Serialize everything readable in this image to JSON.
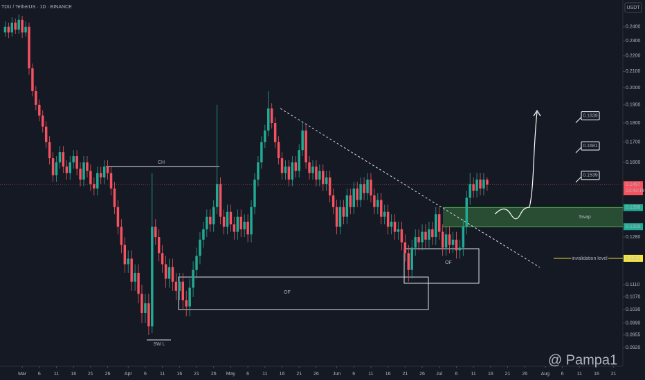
{
  "chart_data": {
    "type": "candlestick",
    "title": "TDU / TetherUS · 1D · BINANCE",
    "currency": "USDT",
    "countdown": "13:43:19",
    "watermark": "@ Pampa1",
    "up_color": "#22ab94",
    "down_color": "#f7525f",
    "log_scale": true,
    "grid": false,
    "xlim": [
      -1.5,
      180.7
    ],
    "ylim": [
      0.087,
      0.26
    ],
    "xticks": [
      {
        "value": 5,
        "label": "Mar"
      },
      {
        "value": 10,
        "label": "6"
      },
      {
        "value": 15,
        "label": "11"
      },
      {
        "value": 20,
        "label": "16"
      },
      {
        "value": 25,
        "label": "21"
      },
      {
        "value": 30,
        "label": "26"
      },
      {
        "value": 36,
        "label": "Apr"
      },
      {
        "value": 41,
        "label": "6"
      },
      {
        "value": 46,
        "label": "11"
      },
      {
        "value": 51,
        "label": "16"
      },
      {
        "value": 56,
        "label": "21"
      },
      {
        "value": 61,
        "label": "26"
      },
      {
        "value": 66,
        "label": "May"
      },
      {
        "value": 71,
        "label": "6"
      },
      {
        "value": 76,
        "label": "11"
      },
      {
        "value": 81,
        "label": "16"
      },
      {
        "value": 86,
        "label": "21"
      },
      {
        "value": 91,
        "label": "26"
      },
      {
        "value": 97,
        "label": "Jun"
      },
      {
        "value": 102,
        "label": "6"
      },
      {
        "value": 107,
        "label": "11"
      },
      {
        "value": 112,
        "label": "16"
      },
      {
        "value": 117,
        "label": "21"
      },
      {
        "value": 122,
        "label": "26"
      },
      {
        "value": 127,
        "label": "Jul"
      },
      {
        "value": 132,
        "label": "6"
      },
      {
        "value": 137,
        "label": "11"
      },
      {
        "value": 142,
        "label": "16"
      },
      {
        "value": 147,
        "label": "21"
      },
      {
        "value": 152,
        "label": "26"
      },
      {
        "value": 158,
        "label": "Aug"
      },
      {
        "value": 163,
        "label": "6"
      },
      {
        "value": 168,
        "label": "11"
      },
      {
        "value": 173,
        "label": "16"
      },
      {
        "value": 178,
        "label": "21"
      }
    ],
    "yticks": [
      {
        "value": 0.24,
        "label": "0.2400"
      },
      {
        "value": 0.23,
        "label": "0.2300"
      },
      {
        "value": 0.22,
        "label": "0.2200"
      },
      {
        "value": 0.21,
        "label": "0.2100"
      },
      {
        "value": 0.2,
        "label": "0.2000"
      },
      {
        "value": 0.19,
        "label": "0.1900"
      },
      {
        "value": 0.18,
        "label": "0.1800"
      },
      {
        "value": 0.17,
        "label": "0.1700"
      },
      {
        "value": 0.16,
        "label": "0.1600"
      },
      {
        "value": 0.128,
        "label": "0.1280"
      },
      {
        "value": 0.111,
        "label": "0.1110"
      },
      {
        "value": 0.107,
        "label": "0.1070"
      },
      {
        "value": 0.103,
        "label": "0.1030"
      },
      {
        "value": 0.099,
        "label": "0.0990"
      },
      {
        "value": 0.0955,
        "label": "0.0955"
      },
      {
        "value": 0.092,
        "label": "0.0920"
      }
    ],
    "price_labels": [
      {
        "value": 0.1497,
        "label": "0.1497",
        "color": "#f7525f"
      },
      {
        "value": 0.1398,
        "label": "0.1398",
        "color": "#22ab94"
      },
      {
        "value": 0.132,
        "label": "0.1320",
        "color": "#22ab94"
      },
      {
        "value": 0.1201,
        "label": "0.1201",
        "color": "#f5e642"
      }
    ],
    "targets": [
      {
        "value": 0.1839,
        "label": "0.1839"
      },
      {
        "value": 0.1681,
        "label": "0.1681"
      },
      {
        "value": 0.1539,
        "label": "0.1539"
      }
    ],
    "annotations": {
      "ch": "CH",
      "swl": "SW L",
      "of_low": "OF",
      "of_high": "OF",
      "swap": "Swap",
      "invalidation": "invalidation level"
    },
    "open": [
      0.236,
      0.24,
      0.236,
      0.243,
      0.238,
      0.245,
      0.236,
      0.24,
      0.212,
      0.198,
      0.19,
      0.184,
      0.178,
      0.17,
      0.162,
      0.154,
      0.16,
      0.165,
      0.158,
      0.155,
      0.16,
      0.163,
      0.157,
      0.152,
      0.16,
      0.156,
      0.15,
      0.148,
      0.155,
      0.153,
      0.158,
      0.155,
      0.148,
      0.14,
      0.132,
      0.125,
      0.118,
      0.12,
      0.112,
      0.115,
      0.108,
      0.102,
      0.105,
      0.098,
      0.132,
      0.128,
      0.122,
      0.118,
      0.113,
      0.117,
      0.112,
      0.109,
      0.112,
      0.106,
      0.104,
      0.11,
      0.116,
      0.121,
      0.127,
      0.131,
      0.136,
      0.133,
      0.14,
      0.15,
      0.136,
      0.132,
      0.138,
      0.133,
      0.13,
      0.136,
      0.131,
      0.134,
      0.129,
      0.14,
      0.152,
      0.16,
      0.17,
      0.176,
      0.188,
      0.18,
      0.17,
      0.162,
      0.155,
      0.158,
      0.152,
      0.16,
      0.156,
      0.166,
      0.176,
      0.16,
      0.155,
      0.158,
      0.152,
      0.156,
      0.15,
      0.153,
      0.145,
      0.14,
      0.132,
      0.14,
      0.136,
      0.145,
      0.14,
      0.148,
      0.143,
      0.15,
      0.146,
      0.152,
      0.145,
      0.14,
      0.143,
      0.136,
      0.138,
      0.132,
      0.134,
      0.13,
      0.131,
      0.126,
      0.122,
      0.116,
      0.124,
      0.128,
      0.126,
      0.13,
      0.127,
      0.131,
      0.128,
      0.137,
      0.13,
      0.124,
      0.129,
      0.125,
      0.127,
      0.123,
      0.124,
      0.132,
      0.144,
      0.15,
      0.147,
      0.152,
      0.148,
      0.152
    ],
    "high": [
      0.244,
      0.243,
      0.247,
      0.246,
      0.249,
      0.248,
      0.244,
      0.243,
      0.215,
      0.201,
      0.193,
      0.187,
      0.181,
      0.173,
      0.165,
      0.163,
      0.168,
      0.168,
      0.161,
      0.163,
      0.166,
      0.166,
      0.16,
      0.163,
      0.163,
      0.159,
      0.153,
      0.158,
      0.158,
      0.161,
      0.161,
      0.158,
      0.151,
      0.143,
      0.135,
      0.128,
      0.123,
      0.123,
      0.118,
      0.118,
      0.111,
      0.108,
      0.108,
      0.155,
      0.135,
      0.131,
      0.125,
      0.121,
      0.12,
      0.12,
      0.115,
      0.115,
      0.115,
      0.109,
      0.113,
      0.119,
      0.124,
      0.13,
      0.134,
      0.139,
      0.139,
      0.143,
      0.19,
      0.153,
      0.139,
      0.141,
      0.141,
      0.136,
      0.139,
      0.139,
      0.137,
      0.137,
      0.143,
      0.155,
      0.163,
      0.173,
      0.179,
      0.198,
      0.191,
      0.183,
      0.173,
      0.165,
      0.161,
      0.161,
      0.163,
      0.163,
      0.169,
      0.18,
      0.179,
      0.163,
      0.161,
      0.161,
      0.159,
      0.159,
      0.156,
      0.156,
      0.148,
      0.143,
      0.143,
      0.143,
      0.148,
      0.148,
      0.151,
      0.151,
      0.153,
      0.153,
      0.155,
      0.155,
      0.148,
      0.146,
      0.146,
      0.141,
      0.141,
      0.137,
      0.137,
      0.134,
      0.134,
      0.129,
      0.125,
      0.127,
      0.131,
      0.131,
      0.133,
      0.133,
      0.134,
      0.134,
      0.14,
      0.14,
      0.133,
      0.132,
      0.132,
      0.13,
      0.13,
      0.127,
      0.135,
      0.147,
      0.155,
      0.153,
      0.155,
      0.155,
      0.155,
      0.153
    ],
    "low": [
      0.233,
      0.232,
      0.233,
      0.235,
      0.235,
      0.232,
      0.233,
      0.208,
      0.195,
      0.187,
      0.181,
      0.175,
      0.167,
      0.159,
      0.151,
      0.151,
      0.157,
      0.155,
      0.152,
      0.152,
      0.157,
      0.154,
      0.149,
      0.149,
      0.153,
      0.147,
      0.145,
      0.145,
      0.15,
      0.15,
      0.152,
      0.145,
      0.137,
      0.129,
      0.122,
      0.115,
      0.115,
      0.109,
      0.109,
      0.105,
      0.099,
      0.099,
      0.0955,
      0.096,
      0.125,
      0.119,
      0.115,
      0.11,
      0.11,
      0.109,
      0.106,
      0.106,
      0.103,
      0.101,
      0.101,
      0.107,
      0.113,
      0.118,
      0.124,
      0.128,
      0.13,
      0.13,
      0.137,
      0.133,
      0.129,
      0.129,
      0.13,
      0.127,
      0.127,
      0.128,
      0.128,
      0.126,
      0.126,
      0.137,
      0.149,
      0.157,
      0.167,
      0.173,
      0.177,
      0.167,
      0.159,
      0.152,
      0.152,
      0.149,
      0.149,
      0.153,
      0.153,
      0.163,
      0.157,
      0.152,
      0.152,
      0.149,
      0.149,
      0.147,
      0.147,
      0.142,
      0.137,
      0.129,
      0.129,
      0.133,
      0.133,
      0.137,
      0.137,
      0.14,
      0.14,
      0.143,
      0.143,
      0.142,
      0.137,
      0.137,
      0.133,
      0.133,
      0.129,
      0.129,
      0.127,
      0.127,
      0.123,
      0.119,
      0.112,
      0.113,
      0.121,
      0.123,
      0.123,
      0.124,
      0.124,
      0.125,
      0.125,
      0.127,
      0.121,
      0.121,
      0.122,
      0.122,
      0.12,
      0.12,
      0.121,
      0.129,
      0.141,
      0.144,
      0.144,
      0.145,
      0.145,
      0.147
    ],
    "close": [
      0.24,
      0.236,
      0.243,
      0.238,
      0.245,
      0.236,
      0.24,
      0.212,
      0.198,
      0.19,
      0.184,
      0.178,
      0.17,
      0.162,
      0.154,
      0.16,
      0.165,
      0.158,
      0.155,
      0.16,
      0.163,
      0.157,
      0.152,
      0.16,
      0.156,
      0.15,
      0.148,
      0.155,
      0.153,
      0.158,
      0.155,
      0.148,
      0.14,
      0.132,
      0.125,
      0.118,
      0.12,
      0.112,
      0.115,
      0.108,
      0.102,
      0.105,
      0.098,
      0.132,
      0.128,
      0.122,
      0.118,
      0.113,
      0.117,
      0.112,
      0.109,
      0.112,
      0.106,
      0.104,
      0.11,
      0.116,
      0.121,
      0.127,
      0.131,
      0.136,
      0.133,
      0.14,
      0.15,
      0.136,
      0.132,
      0.138,
      0.133,
      0.13,
      0.136,
      0.131,
      0.134,
      0.129,
      0.14,
      0.152,
      0.16,
      0.17,
      0.176,
      0.188,
      0.18,
      0.17,
      0.162,
      0.155,
      0.158,
      0.152,
      0.16,
      0.156,
      0.166,
      0.176,
      0.16,
      0.155,
      0.158,
      0.152,
      0.156,
      0.15,
      0.153,
      0.145,
      0.14,
      0.132,
      0.14,
      0.136,
      0.145,
      0.14,
      0.148,
      0.143,
      0.15,
      0.146,
      0.152,
      0.145,
      0.14,
      0.143,
      0.136,
      0.138,
      0.132,
      0.134,
      0.13,
      0.131,
      0.126,
      0.122,
      0.116,
      0.124,
      0.128,
      0.126,
      0.13,
      0.127,
      0.131,
      0.128,
      0.137,
      0.13,
      0.124,
      0.129,
      0.125,
      0.127,
      0.123,
      0.124,
      0.132,
      0.144,
      0.15,
      0.147,
      0.152,
      0.148,
      0.152,
      0.1497
    ]
  }
}
